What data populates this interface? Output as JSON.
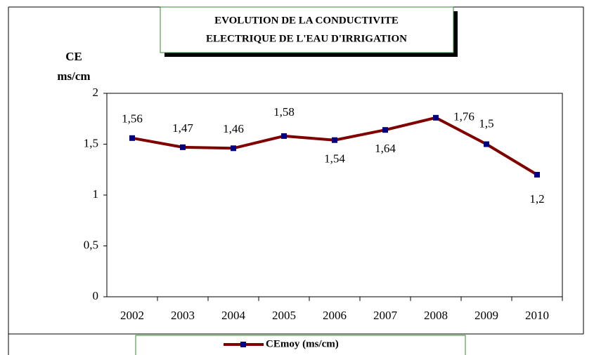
{
  "chart_data": {
    "type": "line",
    "title": [
      "EVOLUTION DE LA CONDUCTIVITE",
      "ELECTRIQUE DE L'EAU D'IRRIGATION"
    ],
    "y_label": [
      "CE",
      "ms/cm"
    ],
    "categories": [
      "2002",
      "2003",
      "2004",
      "2005",
      "2006",
      "2007",
      "2008",
      "2009",
      "2010"
    ],
    "series": [
      {
        "name": "CEmoy (ms/cm)",
        "color": "#800000",
        "marker_color": "#000080",
        "values": [
          1.56,
          1.47,
          1.46,
          1.58,
          1.54,
          1.64,
          1.76,
          1.5,
          1.2
        ],
        "value_labels": [
          "1,56",
          "1,47",
          "1,46",
          "1,58",
          "1,54",
          "1,64",
          "1,76",
          "1,5",
          "1,2"
        ]
      }
    ],
    "ylim": [
      0,
      2
    ],
    "yticks": [
      0,
      {
        "value": 0.5,
        "label": "0,5"
      },
      1,
      {
        "value": 1.5,
        "label": "1,5"
      },
      2
    ],
    "grid": false,
    "legend": "bottom"
  }
}
